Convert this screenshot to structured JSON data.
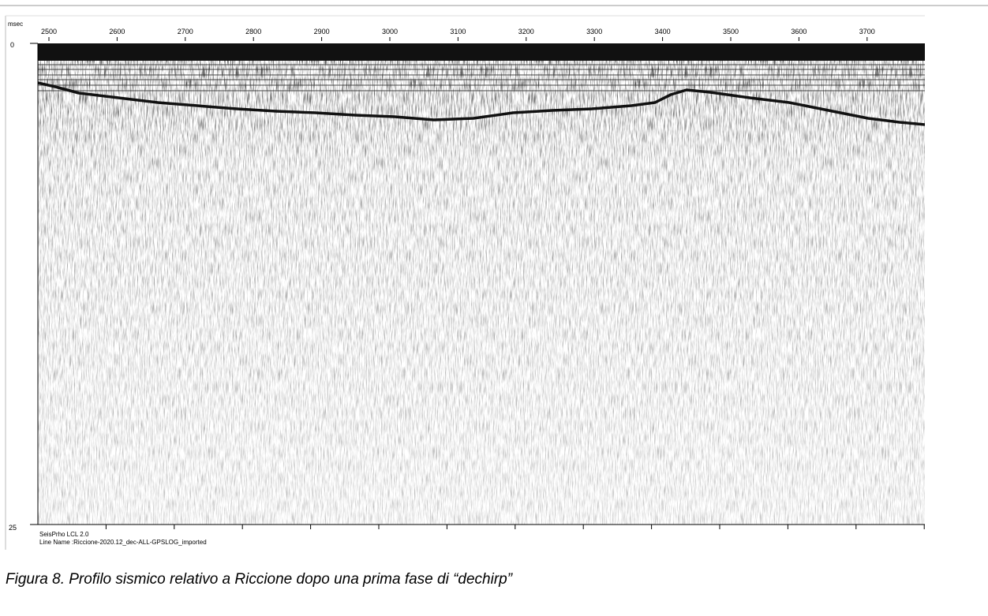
{
  "figure": {
    "y_unit": "msec",
    "y_top": "0",
    "y_bottom": "25",
    "x_ticks": [
      "2500",
      "2600",
      "2700",
      "2800",
      "2900",
      "3000",
      "3100",
      "3200",
      "3300",
      "3400",
      "3500",
      "3600",
      "3700"
    ],
    "software": "SeisPrho LCL 2.0",
    "line_name": "Line Name :Riccione-2020.12_dec-ALL-GPSLOG_imported"
  },
  "caption": "Figura 8. Profilo sismico relativo a Riccione dopo una prima fase di “dechirp”"
}
